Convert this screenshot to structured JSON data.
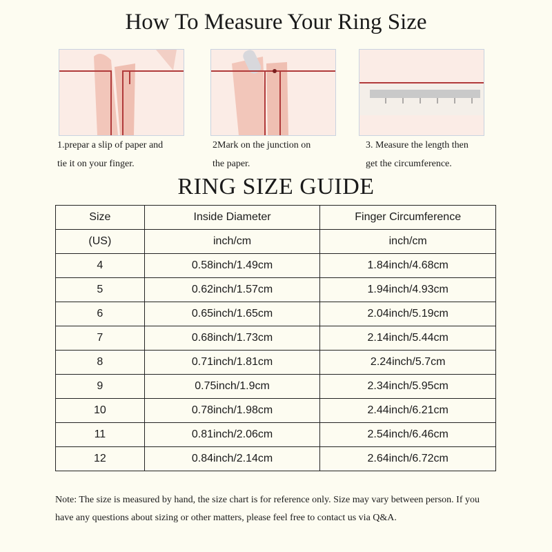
{
  "title": "How To Measure Your Ring Size",
  "steps": [
    {
      "line1": "1.prepar a slip of paper and",
      "line2": "tie it on your finger.",
      "image": "finger-wrapped-with-string"
    },
    {
      "line1": "2Mark on the  junction on",
      "line2": "the paper.",
      "image": "marking-string-junction"
    },
    {
      "line1": "3. Measure the length then",
      "line2": "get the circumference.",
      "image": "string-on-ruler"
    }
  ],
  "guide_title": "RING SIZE  GUIDE",
  "table": {
    "headers": [
      "Size",
      "Inside Diameter",
      "Finger Circumference"
    ],
    "units": [
      "(US)",
      "inch/cm",
      "inch/cm"
    ],
    "rows": [
      [
        "4",
        "0.58inch/1.49cm",
        "1.84inch/4.68cm"
      ],
      [
        "5",
        "0.62inch/1.57cm",
        "1.94inch/4.93cm"
      ],
      [
        "6",
        "0.65inch/1.65cm",
        "2.04inch/5.19cm"
      ],
      [
        "7",
        "0.68inch/1.73cm",
        "2.14inch/5.44cm"
      ],
      [
        "8",
        "0.71inch/1.81cm",
        "2.24inch/5.7cm"
      ],
      [
        "9",
        "0.75inch/1.9cm",
        "2.34inch/5.95cm"
      ],
      [
        "10",
        "0.78inch/1.98cm",
        "2.44inch/6.21cm"
      ],
      [
        "11",
        "0.81inch/2.06cm",
        "2.54inch/6.46cm"
      ],
      [
        "12",
        "0.84inch/2.14cm",
        "2.64inch/6.72cm"
      ]
    ]
  },
  "note": "Note: The size is measured by hand, the size chart is for reference only. Size may vary between person. If you have any questions about sizing or other matters, please feel free to contact us via Q&A.",
  "colors": {
    "background": "#fdfcf1",
    "string": "#b03a3a",
    "skin": "#f0c4b8"
  }
}
